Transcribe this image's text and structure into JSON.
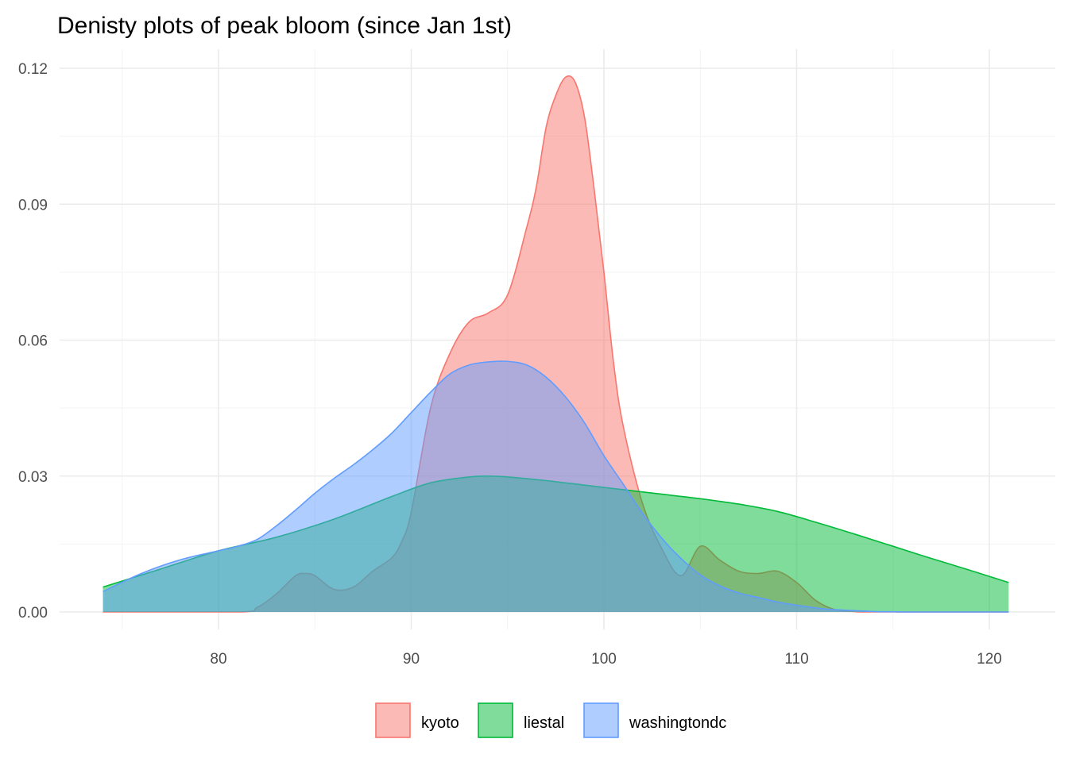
{
  "chart_data": {
    "type": "area",
    "title": "Denisty plots of peak bloom (since Jan 1st)",
    "xlabel": "",
    "ylabel": "",
    "xlim": [
      74,
      121
    ],
    "ylim": [
      0,
      0.12
    ],
    "x_ticks": [
      80,
      90,
      100,
      110,
      120
    ],
    "y_ticks": [
      0,
      0.03,
      0.06,
      0.09,
      0.12
    ],
    "x_tick_labels": [
      "80",
      "90",
      "100",
      "110",
      "120"
    ],
    "y_tick_labels": [
      "0.00",
      "0.03",
      "0.06",
      "0.09",
      "0.12"
    ],
    "grid": true,
    "legend_position": "bottom",
    "series": [
      {
        "name": "kyoto",
        "color": "#F8766D",
        "x": [
          74,
          81,
          82,
          83,
          84,
          84.5,
          85,
          86,
          87,
          88,
          89,
          89.5,
          90,
          91,
          92,
          93,
          94,
          95,
          96,
          96.5,
          97,
          97.5,
          98,
          98.5,
          99,
          99.5,
          100,
          100.5,
          101,
          102,
          103,
          104,
          105,
          106,
          107,
          108,
          109,
          110,
          111,
          112,
          113,
          114,
          121
        ],
        "y": [
          0,
          0,
          0.001,
          0.004,
          0.008,
          0.0085,
          0.008,
          0.005,
          0.0055,
          0.009,
          0.012,
          0.0155,
          0.022,
          0.045,
          0.057,
          0.064,
          0.066,
          0.07,
          0.085,
          0.094,
          0.107,
          0.114,
          0.118,
          0.117,
          0.109,
          0.093,
          0.075,
          0.055,
          0.041,
          0.024,
          0.014,
          0.008,
          0.0145,
          0.0115,
          0.009,
          0.0085,
          0.009,
          0.0065,
          0.0025,
          0.0005,
          0.0001,
          0,
          0
        ]
      },
      {
        "name": "liestal",
        "color": "#00BA38",
        "x": [
          74,
          77,
          80,
          83,
          86,
          89,
          91,
          93,
          94,
          95,
          97,
          99,
          101,
          103,
          105,
          107,
          109,
          111,
          113,
          115,
          117,
          119,
          121
        ],
        "y": [
          0.0055,
          0.0095,
          0.0135,
          0.0165,
          0.0205,
          0.0255,
          0.0285,
          0.0298,
          0.03,
          0.0298,
          0.029,
          0.028,
          0.027,
          0.026,
          0.025,
          0.0238,
          0.0222,
          0.0198,
          0.0172,
          0.0145,
          0.0118,
          0.0092,
          0.0065
        ]
      },
      {
        "name": "washingtondc",
        "color": "#619CFF",
        "x": [
          74,
          76,
          78,
          80,
          81,
          82,
          83,
          84,
          85,
          86,
          87,
          88,
          89,
          90,
          91,
          92,
          93,
          94,
          95,
          96,
          97,
          98,
          99,
          100,
          101,
          102,
          103,
          104,
          105,
          106,
          107,
          108,
          109,
          110,
          111,
          112,
          113,
          114,
          115,
          116,
          121
        ],
        "y": [
          0.0045,
          0.0085,
          0.0115,
          0.0135,
          0.0145,
          0.016,
          0.019,
          0.0225,
          0.0262,
          0.0295,
          0.0325,
          0.0358,
          0.0395,
          0.044,
          0.0485,
          0.0525,
          0.0545,
          0.0552,
          0.0553,
          0.0545,
          0.0518,
          0.0475,
          0.0417,
          0.0345,
          0.0282,
          0.0218,
          0.0163,
          0.0118,
          0.0082,
          0.0058,
          0.0042,
          0.0032,
          0.0022,
          0.0015,
          0.0009,
          0.0005,
          0.0003,
          0.0001,
          5e-05,
          0,
          0
        ]
      }
    ]
  },
  "legend": {
    "items": [
      {
        "label": "kyoto",
        "color": "#F8766D"
      },
      {
        "label": "liestal",
        "color": "#00BA38"
      },
      {
        "label": "washingtondc",
        "color": "#619CFF"
      }
    ]
  }
}
